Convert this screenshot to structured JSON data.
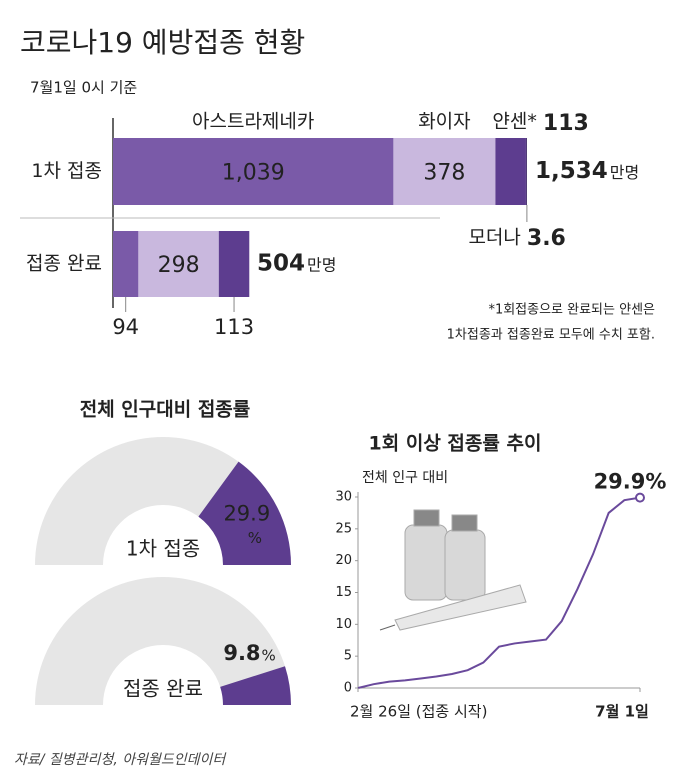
{
  "title": "코로나19 예방접종 현황",
  "subtitle": "7월1일 0시 기준",
  "source": "자료/ 질병관리청, 아워월드인데이터",
  "chart_data": [
    {
      "type": "stacked-bar",
      "categories": [
        "1차 접종",
        "접종 완료"
      ],
      "series": [
        {
          "name": "아스트라제네카",
          "color": "#7a5aa8",
          "values": [
            1039,
            94
          ],
          "value_labels": [
            "1,039",
            "94"
          ]
        },
        {
          "name": "화이자",
          "color": "#c9b8de",
          "values": [
            378,
            298
          ]
        },
        {
          "name": "얀센*",
          "color": "#5d3d8f",
          "values": [
            113,
            113
          ]
        },
        {
          "name": "모더나",
          "color": "#3b2466",
          "values": [
            3.6,
            null
          ]
        }
      ],
      "totals": [
        1534,
        504
      ],
      "total_labels": [
        "1,534",
        "504"
      ],
      "unit": "만명",
      "notes": [
        "*1회접종으로 완료되는 얀센은",
        "1차접종과 접종완료 모두에 수치 포함."
      ]
    },
    {
      "type": "gauge",
      "title": "전체 인구대비 접종률",
      "categories": [
        "1차 접종",
        "접종 완료"
      ],
      "values": [
        29.9,
        9.8
      ],
      "unit": "%",
      "ylim": [
        0,
        100
      ],
      "color": "#5d3d8f",
      "track_color": "#e6e6e6"
    },
    {
      "type": "line",
      "title": "1회 이상  접종률 추이",
      "y_label": "전체 인구 대비",
      "categories": [
        "2월 26일 (접종 시작)",
        null,
        null,
        null,
        null,
        null,
        null,
        null,
        null,
        null,
        null,
        null,
        null,
        null,
        null,
        null,
        null,
        null,
        "7월 1일"
      ],
      "values": [
        0,
        0.6,
        1.0,
        1.2,
        1.5,
        1.8,
        2.2,
        2.8,
        4.0,
        6.5,
        7.0,
        7.3,
        7.6,
        10.5,
        15.5,
        21,
        27.5,
        29.5,
        29.9
      ],
      "value_labels": [
        null,
        null,
        null,
        null,
        null,
        null,
        null,
        null,
        null,
        null,
        null,
        null,
        null,
        null,
        null,
        null,
        null,
        null,
        "29.9%"
      ],
      "color": "#6a4a9c",
      "ylim": [
        0,
        30
      ],
      "yticks": [
        0,
        5,
        10,
        15,
        20,
        25,
        30
      ]
    }
  ]
}
